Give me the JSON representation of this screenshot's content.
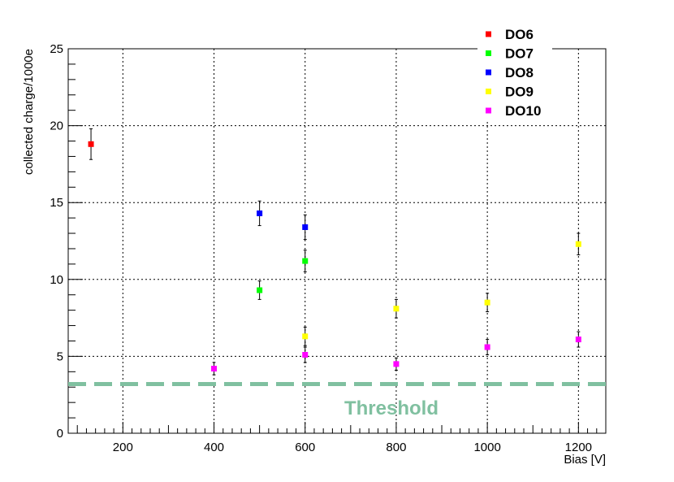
{
  "chart_data": {
    "type": "scatter",
    "title": "",
    "xlabel": "Bias [V]",
    "ylabel": "collected charge/1000e",
    "xlim": [
      80,
      1260
    ],
    "ylim": [
      0,
      25
    ],
    "x_ticks": [
      200,
      400,
      600,
      800,
      1000,
      1200
    ],
    "y_ticks": [
      0,
      5,
      10,
      15,
      20,
      25
    ],
    "grid": true,
    "legend_position": "top-right",
    "series": [
      {
        "name": "DO6",
        "color": "#ff0000",
        "points": [
          {
            "x": 130,
            "y": 18.8,
            "err": 1.0
          }
        ]
      },
      {
        "name": "DO7",
        "color": "#00ff00",
        "points": [
          {
            "x": 500,
            "y": 9.3,
            "err": 0.6
          },
          {
            "x": 600,
            "y": 11.2,
            "err": 0.7
          }
        ]
      },
      {
        "name": "DO8",
        "color": "#0000ff",
        "points": [
          {
            "x": 500,
            "y": 14.3,
            "err": 0.8
          },
          {
            "x": 600,
            "y": 13.4,
            "err": 0.8
          }
        ]
      },
      {
        "name": "DO9",
        "color": "#ffff00",
        "points": [
          {
            "x": 600,
            "y": 6.3,
            "err": 0.6
          },
          {
            "x": 800,
            "y": 8.1,
            "err": 0.6
          },
          {
            "x": 1000,
            "y": 8.5,
            "err": 0.6
          },
          {
            "x": 1200,
            "y": 12.3,
            "err": 0.7
          }
        ]
      },
      {
        "name": "DO10",
        "color": "#ff00ff",
        "points": [
          {
            "x": 400,
            "y": 4.2,
            "err": 0.4
          },
          {
            "x": 600,
            "y": 5.1,
            "err": 0.5
          },
          {
            "x": 800,
            "y": 4.5,
            "err": 0.4
          },
          {
            "x": 1000,
            "y": 5.6,
            "err": 0.5
          },
          {
            "x": 1200,
            "y": 6.1,
            "err": 0.5
          }
        ]
      }
    ],
    "threshold": {
      "label": "Threshold",
      "y": 3.2,
      "color": "#80c0a0"
    }
  }
}
